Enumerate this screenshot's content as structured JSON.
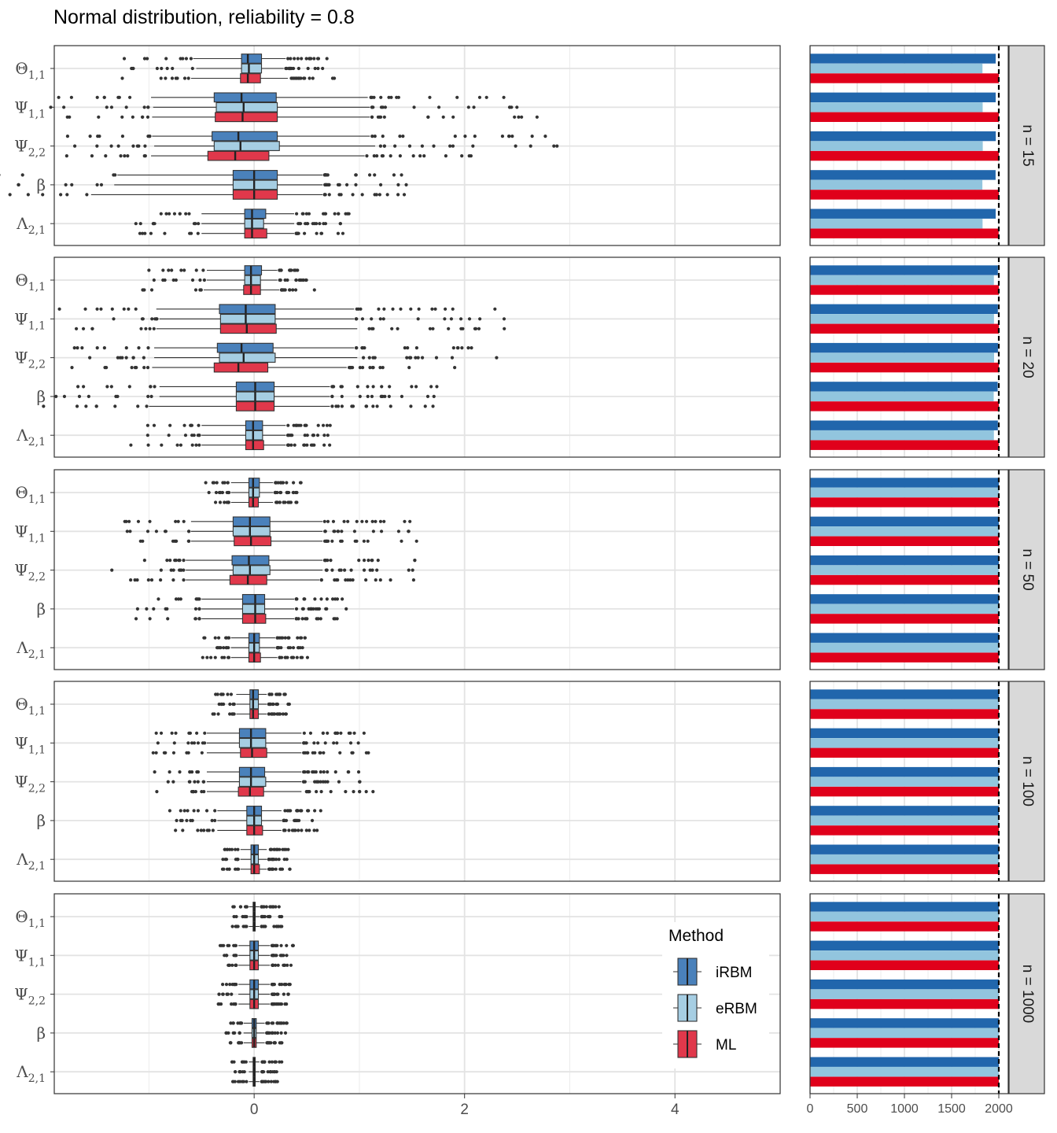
{
  "chart_data": {
    "title": "Normal distribution, reliability = 0.8",
    "type": "boxplot-with-bar-facets",
    "xlabel": "",
    "ylabel": "",
    "box_xlim": [
      -1.9,
      5.0
    ],
    "box_x_ticks": [
      0,
      2,
      4
    ],
    "bar_xlim": [
      0,
      2100
    ],
    "bar_x_ticks": [
      0,
      500,
      1000,
      1500,
      2000
    ],
    "reference_line": 2000,
    "parameters": [
      {
        "base": "Θ",
        "sub": "1,1"
      },
      {
        "base": "Ψ",
        "sub": "1,1"
      },
      {
        "base": "Ψ",
        "sub": "2,2"
      },
      {
        "base": "β",
        "sub": ""
      },
      {
        "base": "Λ",
        "sub": "2,1"
      }
    ],
    "legend": {
      "title": "Method",
      "position": "inside bottom-right",
      "items": [
        {
          "name": "iRBM",
          "box_color": "#4A81BB",
          "bar_color": "#2166AC"
        },
        {
          "name": "eRBM",
          "box_color": "#A6CEE3",
          "bar_color": "#92C5DE"
        },
        {
          "name": "ML",
          "box_color": "#E0384B",
          "bar_color": "#E0001B"
        }
      ]
    },
    "facets": [
      {
        "label": "n = 15",
        "bar_counts": [
          [
            1967,
            1827,
            2000
          ],
          [
            1967,
            1829,
            2000
          ],
          [
            1968,
            1830,
            2000
          ],
          [
            1966,
            1826,
            2000
          ],
          [
            1967,
            1828,
            1998
          ]
        ],
        "boxes": [
          [
            [
              -0.58,
              -0.12,
              -0.06,
              0.07,
              0.3
            ],
            [
              -0.55,
              -0.12,
              -0.05,
              0.07,
              0.28
            ],
            [
              -0.6,
              -0.13,
              -0.06,
              0.06,
              0.32
            ]
          ],
          [
            [
              -0.98,
              -0.38,
              -0.12,
              0.21,
              1.08
            ],
            [
              -0.96,
              -0.36,
              -0.1,
              0.22,
              1.1
            ],
            [
              -0.97,
              -0.37,
              -0.11,
              0.22,
              1.1
            ]
          ],
          [
            [
              -0.97,
              -0.4,
              -0.15,
              0.22,
              1.1
            ],
            [
              -0.95,
              -0.38,
              -0.13,
              0.24,
              1.15
            ],
            [
              -0.98,
              -0.44,
              -0.18,
              0.14,
              1.05
            ]
          ],
          [
            [
              -1.3,
              -0.2,
              0.0,
              0.22,
              0.65
            ],
            [
              -1.33,
              -0.2,
              0.0,
              0.22,
              0.65
            ],
            [
              -1.55,
              -0.2,
              0.0,
              0.22,
              0.65
            ]
          ],
          [
            [
              -0.5,
              -0.09,
              -0.02,
              0.11,
              0.38
            ],
            [
              -0.5,
              -0.09,
              -0.02,
              0.09,
              0.38
            ],
            [
              -0.5,
              -0.09,
              -0.02,
              0.12,
              0.38
            ]
          ]
        ]
      },
      {
        "label": "n = 20",
        "bar_counts": [
          [
            1990,
            1948,
            2000
          ],
          [
            1990,
            1949,
            2000
          ],
          [
            1991,
            1950,
            2000
          ],
          [
            1988,
            1946,
            2000
          ],
          [
            1990,
            1948,
            1999
          ]
        ],
        "boxes": [
          [
            [
              -0.45,
              -0.09,
              -0.03,
              0.07,
              0.22
            ],
            [
              -0.45,
              -0.09,
              -0.03,
              0.06,
              0.22
            ],
            [
              -0.48,
              -0.1,
              -0.03,
              0.06,
              0.24
            ]
          ],
          [
            [
              -0.93,
              -0.33,
              -0.08,
              0.2,
              0.95
            ],
            [
              -0.9,
              -0.32,
              -0.08,
              0.2,
              0.95
            ],
            [
              -0.93,
              -0.32,
              -0.07,
              0.21,
              0.98
            ]
          ],
          [
            [
              -0.95,
              -0.35,
              -0.12,
              0.18,
              0.95
            ],
            [
              -0.95,
              -0.33,
              -0.1,
              0.2,
              0.98
            ],
            [
              -0.97,
              -0.38,
              -0.15,
              0.13,
              0.88
            ]
          ],
          [
            [
              -0.9,
              -0.17,
              0.01,
              0.19,
              0.72
            ],
            [
              -0.9,
              -0.17,
              0.01,
              0.19,
              0.72
            ],
            [
              -1.0,
              -0.17,
              0.01,
              0.19,
              0.72
            ]
          ],
          [
            [
              -0.5,
              -0.08,
              -0.01,
              0.08,
              0.3
            ],
            [
              -0.5,
              -0.08,
              -0.01,
              0.08,
              0.3
            ],
            [
              -0.5,
              -0.08,
              -0.01,
              0.09,
              0.3
            ]
          ]
        ]
      },
      {
        "label": "n = 50",
        "bar_counts": [
          [
            2000,
            2000,
            2000
          ],
          [
            2000,
            2000,
            2000
          ],
          [
            2000,
            2000,
            2000
          ],
          [
            2000,
            2000,
            2000
          ],
          [
            2000,
            2000,
            2000
          ]
        ],
        "boxes": [
          [
            [
              -0.22,
              -0.05,
              -0.01,
              0.05,
              0.18
            ],
            [
              -0.22,
              -0.05,
              -0.01,
              0.05,
              0.18
            ],
            [
              -0.22,
              -0.05,
              -0.01,
              0.04,
              0.18
            ]
          ],
          [
            [
              -0.6,
              -0.2,
              -0.04,
              0.15,
              0.65
            ],
            [
              -0.6,
              -0.2,
              -0.04,
              0.15,
              0.65
            ],
            [
              -0.6,
              -0.19,
              -0.03,
              0.16,
              0.65
            ]
          ],
          [
            [
              -0.65,
              -0.21,
              -0.05,
              0.14,
              0.65
            ],
            [
              -0.65,
              -0.2,
              -0.04,
              0.15,
              0.65
            ],
            [
              -0.65,
              -0.23,
              -0.06,
              0.12,
              0.62
            ]
          ],
          [
            [
              -0.5,
              -0.11,
              0.01,
              0.1,
              0.38
            ],
            [
              -0.5,
              -0.11,
              0.01,
              0.1,
              0.38
            ],
            [
              -0.5,
              -0.11,
              0.01,
              0.11,
              0.38
            ]
          ],
          [
            [
              -0.22,
              -0.05,
              0.0,
              0.05,
              0.2
            ],
            [
              -0.22,
              -0.05,
              0.0,
              0.05,
              0.2
            ],
            [
              -0.22,
              -0.05,
              0.0,
              0.06,
              0.22
            ]
          ]
        ]
      },
      {
        "label": "n = 100",
        "bar_counts": [
          [
            2000,
            2000,
            2000
          ],
          [
            2000,
            2000,
            2000
          ],
          [
            2000,
            2000,
            2000
          ],
          [
            2000,
            2000,
            2000
          ],
          [
            2000,
            2000,
            2000
          ]
        ],
        "boxes": [
          [
            [
              -0.17,
              -0.04,
              -0.01,
              0.04,
              0.12
            ],
            [
              -0.17,
              -0.04,
              -0.01,
              0.04,
              0.12
            ],
            [
              -0.17,
              -0.04,
              -0.01,
              0.04,
              0.12
            ]
          ],
          [
            [
              -0.45,
              -0.14,
              -0.03,
              0.11,
              0.45
            ],
            [
              -0.45,
              -0.14,
              -0.03,
              0.11,
              0.45
            ],
            [
              -0.45,
              -0.13,
              -0.02,
              0.12,
              0.45
            ]
          ],
          [
            [
              -0.45,
              -0.14,
              -0.03,
              0.1,
              0.45
            ],
            [
              -0.45,
              -0.14,
              -0.03,
              0.11,
              0.45
            ],
            [
              -0.45,
              -0.15,
              -0.04,
              0.09,
              0.45
            ]
          ],
          [
            [
              -0.35,
              -0.07,
              0.0,
              0.07,
              0.26
            ],
            [
              -0.35,
              -0.07,
              0.0,
              0.07,
              0.26
            ],
            [
              -0.35,
              -0.07,
              0.0,
              0.08,
              0.26
            ]
          ],
          [
            [
              -0.13,
              -0.03,
              0.0,
              0.04,
              0.12
            ],
            [
              -0.13,
              -0.03,
              0.0,
              0.04,
              0.12
            ],
            [
              -0.13,
              -0.03,
              0.0,
              0.05,
              0.12
            ]
          ]
        ]
      },
      {
        "label": "n = 1000",
        "bar_counts": [
          [
            2000,
            2000,
            2000
          ],
          [
            2000,
            2000,
            2000
          ],
          [
            2000,
            2000,
            2000
          ],
          [
            2000,
            2000,
            2000
          ],
          [
            2000,
            2000,
            2000
          ]
        ],
        "boxes": [
          [
            [
              -0.05,
              -0.01,
              0.0,
              0.01,
              0.05
            ],
            [
              -0.05,
              -0.01,
              0.0,
              0.01,
              0.05
            ],
            [
              -0.05,
              -0.01,
              0.0,
              0.01,
              0.05
            ]
          ],
          [
            [
              -0.15,
              -0.04,
              0.0,
              0.04,
              0.15
            ],
            [
              -0.15,
              -0.04,
              0.0,
              0.04,
              0.15
            ],
            [
              -0.15,
              -0.04,
              0.0,
              0.04,
              0.15
            ]
          ],
          [
            [
              -0.15,
              -0.04,
              0.0,
              0.04,
              0.15
            ],
            [
              -0.15,
              -0.04,
              0.0,
              0.04,
              0.15
            ],
            [
              -0.15,
              -0.04,
              0.0,
              0.04,
              0.15
            ]
          ],
          [
            [
              -0.1,
              -0.02,
              0.0,
              0.02,
              0.1
            ],
            [
              -0.1,
              -0.02,
              0.0,
              0.02,
              0.1
            ],
            [
              -0.1,
              -0.02,
              0.0,
              0.02,
              0.1
            ]
          ],
          [
            [
              -0.05,
              -0.01,
              0.0,
              0.01,
              0.05
            ],
            [
              -0.05,
              -0.01,
              0.0,
              0.01,
              0.05
            ],
            [
              -0.05,
              -0.01,
              0.0,
              0.01,
              0.05
            ]
          ]
        ]
      }
    ]
  }
}
